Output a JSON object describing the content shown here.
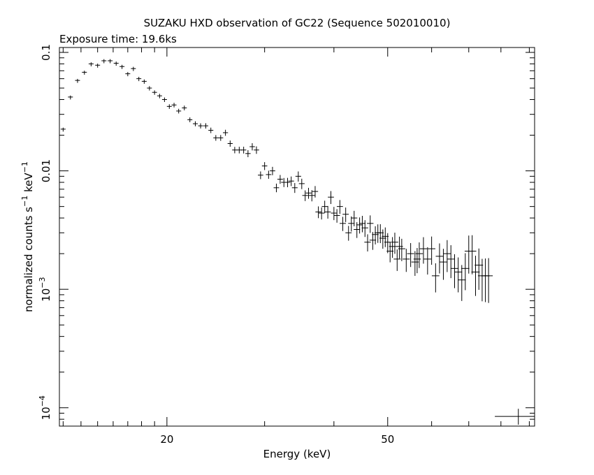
{
  "chart_data": {
    "type": "scatter",
    "title": "SUZAKU HXD observation of GC22 (Sequence 502010010)",
    "subtitle": "Exposure time: 19.6ks",
    "xlabel": "Energy (keV)",
    "ylabel": "normalized counts s-1 keV-1",
    "xscale": "log",
    "yscale": "log",
    "xlim": [
      12.8,
      92
    ],
    "ylim": [
      7e-05,
      0.11
    ],
    "x_ticks": [
      {
        "value": 20,
        "label": "20"
      },
      {
        "value": 50,
        "label": "50"
      }
    ],
    "y_ticks": [
      {
        "value": 0.1,
        "mantissa": "0.1",
        "exp": ""
      },
      {
        "value": 0.01,
        "mantissa": "0.01",
        "exp": ""
      },
      {
        "value": 0.001,
        "mantissa": "10",
        "exp": "−3"
      },
      {
        "value": 0.0001,
        "mantissa": "10",
        "exp": "−4"
      }
    ],
    "grid": false,
    "series": [
      {
        "marker": "cross",
        "points": [
          [
            13.0,
            0.0225
          ],
          [
            13.4,
            0.042
          ],
          [
            13.8,
            0.058
          ],
          [
            14.2,
            0.068
          ],
          [
            14.6,
            0.08
          ],
          [
            15.0,
            0.078
          ],
          [
            15.4,
            0.085
          ],
          [
            15.8,
            0.085
          ],
          [
            16.2,
            0.081
          ],
          [
            16.6,
            0.076
          ],
          [
            17.0,
            0.066
          ],
          [
            17.4,
            0.073
          ],
          [
            17.8,
            0.06
          ],
          [
            18.2,
            0.057
          ],
          [
            18.6,
            0.05
          ],
          [
            19.0,
            0.046
          ],
          [
            19.4,
            0.043
          ],
          [
            19.8,
            0.04
          ],
          [
            20.2,
            0.035
          ],
          [
            20.6,
            0.036
          ],
          [
            21.0,
            0.032
          ],
          [
            21.5,
            0.034
          ],
          [
            22.0,
            0.027
          ],
          [
            22.5,
            0.025
          ],
          [
            23.0,
            0.024
          ],
          [
            23.5,
            0.024
          ],
          [
            24.0,
            0.022
          ],
          [
            24.5,
            0.019
          ],
          [
            25.0,
            0.019
          ],
          [
            25.5,
            0.021
          ],
          [
            26.0,
            0.017
          ],
          [
            26.5,
            0.015
          ],
          [
            27.0,
            0.015
          ],
          [
            27.5,
            0.015
          ],
          [
            28.0,
            0.014
          ],
          [
            28.5,
            0.016
          ],
          [
            29.0,
            0.015
          ],
          [
            29.5,
            0.0092
          ],
          [
            30.0,
            0.011
          ],
          [
            30.5,
            0.0093
          ],
          [
            31.0,
            0.01
          ],
          [
            31.5,
            0.0072
          ],
          [
            32.0,
            0.0085
          ],
          [
            32.5,
            0.008
          ],
          [
            33.0,
            0.008
          ],
          [
            33.5,
            0.0082
          ],
          [
            34.0,
            0.0072
          ],
          [
            34.5,
            0.009
          ],
          [
            35.0,
            0.0078
          ],
          [
            35.5,
            0.0062
          ],
          [
            36.0,
            0.0065
          ],
          [
            36.5,
            0.0062
          ],
          [
            37.0,
            0.0067
          ],
          [
            37.5,
            0.0045
          ],
          [
            38.0,
            0.0044
          ],
          [
            38.5,
            0.005
          ],
          [
            39.0,
            0.0045
          ],
          [
            39.5,
            0.006
          ],
          [
            40.0,
            0.0044
          ],
          [
            40.5,
            0.0042
          ],
          [
            41.0,
            0.005
          ],
          [
            41.5,
            0.0036
          ],
          [
            42.0,
            0.0043
          ],
          [
            42.5,
            0.003
          ],
          [
            43.0,
            0.0036
          ],
          [
            43.5,
            0.004
          ],
          [
            44.0,
            0.0032
          ],
          [
            44.5,
            0.0035
          ],
          [
            45.0,
            0.0036
          ],
          [
            45.5,
            0.0033
          ],
          [
            46.0,
            0.0025
          ],
          [
            46.5,
            0.0036
          ],
          [
            47.0,
            0.0026
          ],
          [
            47.5,
            0.0029
          ],
          [
            48.0,
            0.003
          ],
          [
            48.5,
            0.003
          ],
          [
            49.0,
            0.0027
          ],
          [
            49.5,
            0.0028
          ],
          [
            50.0,
            0.0025
          ],
          [
            50.5,
            0.0021
          ],
          [
            51.0,
            0.0023
          ],
          [
            51.5,
            0.0025
          ],
          [
            52.0,
            0.0018
          ],
          [
            52.5,
            0.0023
          ],
          [
            53.0,
            0.0022
          ],
          [
            54.0,
            0.0018
          ],
          [
            55.0,
            0.002
          ],
          [
            56.0,
            0.0017
          ],
          [
            56.5,
            0.0018
          ],
          [
            57.0,
            0.002
          ],
          [
            58.0,
            0.0022
          ],
          [
            59.0,
            0.0018
          ],
          [
            60.0,
            0.0022
          ],
          [
            61.0,
            0.0013
          ],
          [
            62.0,
            0.0019
          ],
          [
            63.0,
            0.0017
          ],
          [
            64.0,
            0.002
          ],
          [
            65.0,
            0.0018
          ],
          [
            66.0,
            0.0015
          ],
          [
            67.0,
            0.0014
          ],
          [
            68.0,
            0.0012
          ],
          [
            69.0,
            0.0015
          ],
          [
            70.0,
            0.0021
          ],
          [
            71.0,
            0.0021
          ],
          [
            72.0,
            0.0014
          ],
          [
            73.0,
            0.0016
          ],
          [
            74.0,
            0.0013
          ],
          [
            75.0,
            0.0013
          ],
          [
            76.0,
            0.0013
          ]
        ]
      }
    ],
    "reference_cross": {
      "x": 86,
      "x_low": 78,
      "x_high": 92,
      "y": 8.45e-05,
      "y_low": 7.2e-05,
      "y_high": 9.8e-05
    }
  }
}
